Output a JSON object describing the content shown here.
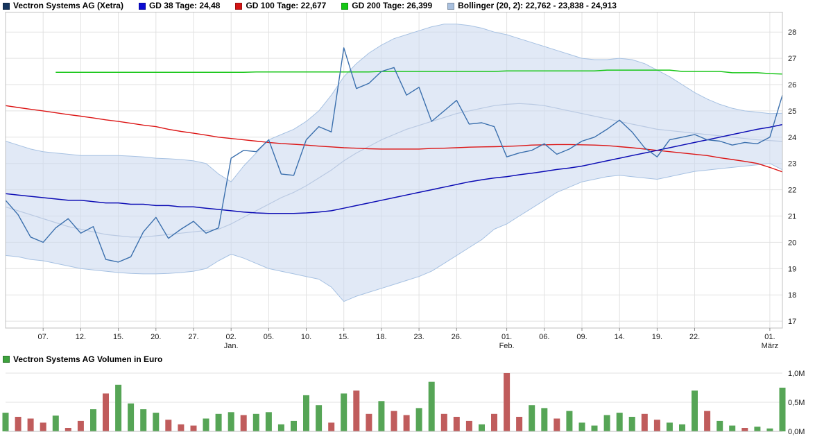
{
  "legend": {
    "items": [
      {
        "label": "Vectron Systems AG (Xetra)",
        "color": "#16355e"
      },
      {
        "label": "GD 38 Tage: 24,48",
        "color": "#0a0ad2"
      },
      {
        "label": "GD 100 Tage: 22,677",
        "color": "#d31414"
      },
      {
        "label": "GD 200 Tage: 26,399",
        "color": "#14c814"
      },
      {
        "label": "Bollinger (20, 2): 22,762 - 23,838 - 24,913",
        "color": "#a9c0de"
      }
    ]
  },
  "volume_legend": {
    "label": "Vectron Systems AG Volumen in Euro",
    "color": "#3da23d"
  },
  "chart_data": {
    "type": "line",
    "title": "Vectron Systems AG (Xetra)",
    "ylim": [
      16.74,
      28.77
    ],
    "yticks": [
      17,
      18,
      19,
      20,
      21,
      22,
      23,
      24,
      25,
      26,
      27,
      28
    ],
    "grid": true,
    "legend_position": "top",
    "x_ticks": [
      {
        "label": "07.",
        "i": 3
      },
      {
        "label": "12.",
        "i": 6
      },
      {
        "label": "15.",
        "i": 9
      },
      {
        "label": "20.",
        "i": 12
      },
      {
        "label": "27.",
        "i": 15
      },
      {
        "label": "02.",
        "i": 18
      },
      {
        "label": "05.",
        "i": 21
      },
      {
        "label": "10.",
        "i": 24
      },
      {
        "label": "15.",
        "i": 27
      },
      {
        "label": "18.",
        "i": 30
      },
      {
        "label": "23.",
        "i": 33
      },
      {
        "label": "26.",
        "i": 36
      },
      {
        "label": "01.",
        "i": 40
      },
      {
        "label": "06.",
        "i": 43
      },
      {
        "label": "09.",
        "i": 46
      },
      {
        "label": "14.",
        "i": 49
      },
      {
        "label": "19.",
        "i": 52
      },
      {
        "label": "22.",
        "i": 55
      },
      {
        "label": "01.",
        "i": 61
      }
    ],
    "month_ticks": [
      {
        "label": "Jan.",
        "i": 18
      },
      {
        "label": "Feb.",
        "i": 40
      },
      {
        "label": "März",
        "i": 61
      }
    ],
    "band": {
      "name": "Bollinger (20, 2)",
      "fill": "#c8d7ee",
      "opacity": 0.55,
      "edge": "#a6c1e2",
      "upper": [
        23.85,
        23.7,
        23.55,
        23.45,
        23.4,
        23.35,
        23.3,
        23.3,
        23.3,
        23.3,
        23.28,
        23.25,
        23.2,
        23.18,
        23.15,
        23.1,
        23.0,
        22.6,
        22.3,
        22.9,
        23.4,
        23.9,
        24.1,
        24.3,
        24.6,
        25.0,
        25.6,
        26.3,
        26.8,
        27.2,
        27.5,
        27.75,
        27.9,
        28.05,
        28.2,
        28.3,
        28.3,
        28.25,
        28.15,
        28.0,
        27.9,
        27.75,
        27.6,
        27.45,
        27.3,
        27.15,
        27.0,
        26.95,
        26.95,
        27.0,
        26.95,
        26.8,
        26.55,
        26.3,
        26.0,
        25.7,
        25.45,
        25.25,
        25.1,
        25.0,
        24.95,
        24.9,
        24.91
      ],
      "lower": [
        19.5,
        19.45,
        19.35,
        19.3,
        19.2,
        19.1,
        19.0,
        18.95,
        18.9,
        18.85,
        18.82,
        18.8,
        18.8,
        18.82,
        18.85,
        18.9,
        19.0,
        19.3,
        19.55,
        19.4,
        19.2,
        19.0,
        18.9,
        18.8,
        18.7,
        18.6,
        18.3,
        17.75,
        17.95,
        18.1,
        18.25,
        18.4,
        18.55,
        18.7,
        18.9,
        19.2,
        19.5,
        19.8,
        20.1,
        20.5,
        20.7,
        21.0,
        21.3,
        21.6,
        21.9,
        22.1,
        22.3,
        22.4,
        22.5,
        22.55,
        22.5,
        22.45,
        22.4,
        22.5,
        22.6,
        22.7,
        22.75,
        22.8,
        22.85,
        22.9,
        22.95,
        23.0,
        22.76
      ],
      "last_values_label": "22,762 - 23,838 - 24,913"
    },
    "series": [
      {
        "name": "Bollinger Mittelband (20)",
        "color": "#b9c9e2",
        "width": 1.2,
        "values": [
          21.35,
          21.2,
          21.05,
          20.9,
          20.75,
          20.6,
          20.5,
          20.4,
          20.3,
          20.25,
          20.2,
          20.2,
          20.25,
          20.3,
          20.35,
          20.4,
          20.45,
          20.5,
          20.7,
          20.95,
          21.2,
          21.45,
          21.7,
          21.9,
          22.15,
          22.45,
          22.75,
          23.1,
          23.4,
          23.65,
          23.9,
          24.1,
          24.3,
          24.45,
          24.6,
          24.75,
          24.9,
          25.0,
          25.1,
          25.2,
          25.25,
          25.28,
          25.25,
          25.2,
          25.1,
          25.0,
          24.9,
          24.8,
          24.7,
          24.6,
          24.5,
          24.4,
          24.3,
          24.25,
          24.2,
          24.15,
          24.1,
          24.05,
          24.0,
          23.95,
          23.9,
          23.87,
          23.84
        ]
      },
      {
        "name": "GD 200 Tage",
        "color": "#18c618",
        "width": 1.5,
        "last_value": 26.399,
        "values": [
          null,
          null,
          null,
          null,
          26.47,
          26.47,
          26.47,
          26.47,
          26.47,
          26.47,
          26.47,
          26.47,
          26.47,
          26.47,
          26.47,
          26.47,
          26.47,
          26.47,
          26.47,
          26.47,
          26.48,
          26.48,
          26.48,
          26.48,
          26.48,
          26.48,
          26.48,
          26.48,
          26.48,
          26.48,
          26.5,
          26.5,
          26.5,
          26.5,
          26.5,
          26.5,
          26.5,
          26.5,
          26.5,
          26.5,
          26.52,
          26.52,
          26.52,
          26.52,
          26.52,
          26.52,
          26.52,
          26.52,
          26.55,
          26.55,
          26.55,
          26.55,
          26.55,
          26.55,
          26.5,
          26.5,
          26.5,
          26.5,
          26.45,
          26.45,
          26.45,
          26.42,
          26.4
        ]
      },
      {
        "name": "GD 100 Tage",
        "color": "#dc1414",
        "width": 1.4,
        "last_value": 22.677,
        "values": [
          25.2,
          25.13,
          25.06,
          25.0,
          24.93,
          24.86,
          24.8,
          24.73,
          24.66,
          24.6,
          24.53,
          24.46,
          24.4,
          24.3,
          24.22,
          24.15,
          24.08,
          24.0,
          23.95,
          23.9,
          23.85,
          23.8,
          23.76,
          23.73,
          23.7,
          23.66,
          23.63,
          23.6,
          23.58,
          23.56,
          23.55,
          23.55,
          23.55,
          23.55,
          23.57,
          23.58,
          23.6,
          23.62,
          23.63,
          23.64,
          23.65,
          23.67,
          23.7,
          23.71,
          23.72,
          23.72,
          23.71,
          23.7,
          23.68,
          23.64,
          23.6,
          23.55,
          23.5,
          23.45,
          23.4,
          23.35,
          23.3,
          23.22,
          23.15,
          23.08,
          23.0,
          22.85,
          22.68
        ]
      },
      {
        "name": "GD 38 Tage",
        "color": "#0b0bb4",
        "width": 1.5,
        "last_value": 24.48,
        "values": [
          21.85,
          21.8,
          21.75,
          21.7,
          21.65,
          21.6,
          21.6,
          21.55,
          21.5,
          21.5,
          21.45,
          21.45,
          21.4,
          21.4,
          21.35,
          21.35,
          21.3,
          21.25,
          21.2,
          21.15,
          21.12,
          21.1,
          21.1,
          21.1,
          21.12,
          21.15,
          21.2,
          21.3,
          21.4,
          21.5,
          21.6,
          21.7,
          21.8,
          21.9,
          22.0,
          22.1,
          22.2,
          22.3,
          22.38,
          22.45,
          22.5,
          22.57,
          22.63,
          22.7,
          22.77,
          22.83,
          22.9,
          23.0,
          23.1,
          23.2,
          23.3,
          23.4,
          23.5,
          23.6,
          23.7,
          23.8,
          23.9,
          24.0,
          24.1,
          24.2,
          24.3,
          24.38,
          24.48
        ]
      },
      {
        "name": "Kurs Vectron Systems AG",
        "color": "#3a6fad",
        "width": 1.4,
        "values": [
          21.6,
          21.05,
          20.2,
          20.0,
          20.55,
          20.9,
          20.35,
          20.6,
          19.35,
          19.25,
          19.45,
          20.4,
          20.95,
          20.15,
          20.5,
          20.8,
          20.35,
          20.55,
          23.2,
          23.5,
          23.45,
          23.9,
          22.6,
          22.55,
          23.9,
          24.4,
          24.2,
          27.4,
          25.85,
          26.05,
          26.5,
          26.65,
          25.6,
          25.9,
          24.6,
          25.0,
          25.4,
          24.5,
          24.55,
          24.4,
          23.25,
          23.4,
          23.5,
          23.75,
          23.35,
          23.55,
          23.85,
          24.0,
          24.3,
          24.65,
          24.2,
          23.6,
          23.25,
          23.9,
          24.0,
          24.1,
          23.9,
          23.85,
          23.7,
          23.8,
          23.75,
          24.0,
          25.6
        ]
      }
    ],
    "volume": {
      "title": "Vectron Systems AG Volumen in Euro",
      "unit": "M",
      "ylim": [
        0,
        1.05
      ],
      "yticks": [
        {
          "label": "0,0M",
          "v": 0
        },
        {
          "label": "0,5M",
          "v": 0.5
        },
        {
          "label": "1,0M",
          "v": 1.0
        }
      ],
      "up_color": "#56a556",
      "down_color": "#c05c5c",
      "values": [
        0.32,
        0.25,
        0.22,
        0.15,
        0.27,
        0.06,
        0.18,
        0.38,
        0.65,
        0.8,
        0.48,
        0.38,
        0.32,
        0.2,
        0.12,
        0.1,
        0.22,
        0.3,
        0.33,
        0.28,
        0.3,
        0.33,
        0.12,
        0.18,
        0.62,
        0.45,
        0.15,
        0.65,
        0.7,
        0.3,
        0.52,
        0.35,
        0.28,
        0.4,
        0.85,
        0.3,
        0.25,
        0.18,
        0.12,
        0.3,
        1.0,
        0.25,
        0.45,
        0.4,
        0.22,
        0.35,
        0.15,
        0.1,
        0.28,
        0.32,
        0.25,
        0.3,
        0.2,
        0.15,
        0.12,
        0.7,
        0.35,
        0.18,
        0.1,
        0.06,
        0.08,
        0.05,
        0.75
      ],
      "dirs": [
        "u",
        "d",
        "d",
        "d",
        "u",
        "d",
        "d",
        "u",
        "d",
        "u",
        "u",
        "u",
        "u",
        "d",
        "d",
        "d",
        "u",
        "u",
        "u",
        "d",
        "u",
        "u",
        "u",
        "u",
        "u",
        "u",
        "d",
        "u",
        "d",
        "d",
        "u",
        "d",
        "d",
        "u",
        "u",
        "d",
        "d",
        "d",
        "u",
        "d",
        "d",
        "d",
        "u",
        "u",
        "d",
        "u",
        "u",
        "u",
        "u",
        "u",
        "u",
        "d",
        "d",
        "u",
        "u",
        "u",
        "d",
        "u",
        "u",
        "d",
        "u",
        "u",
        "u"
      ]
    }
  }
}
